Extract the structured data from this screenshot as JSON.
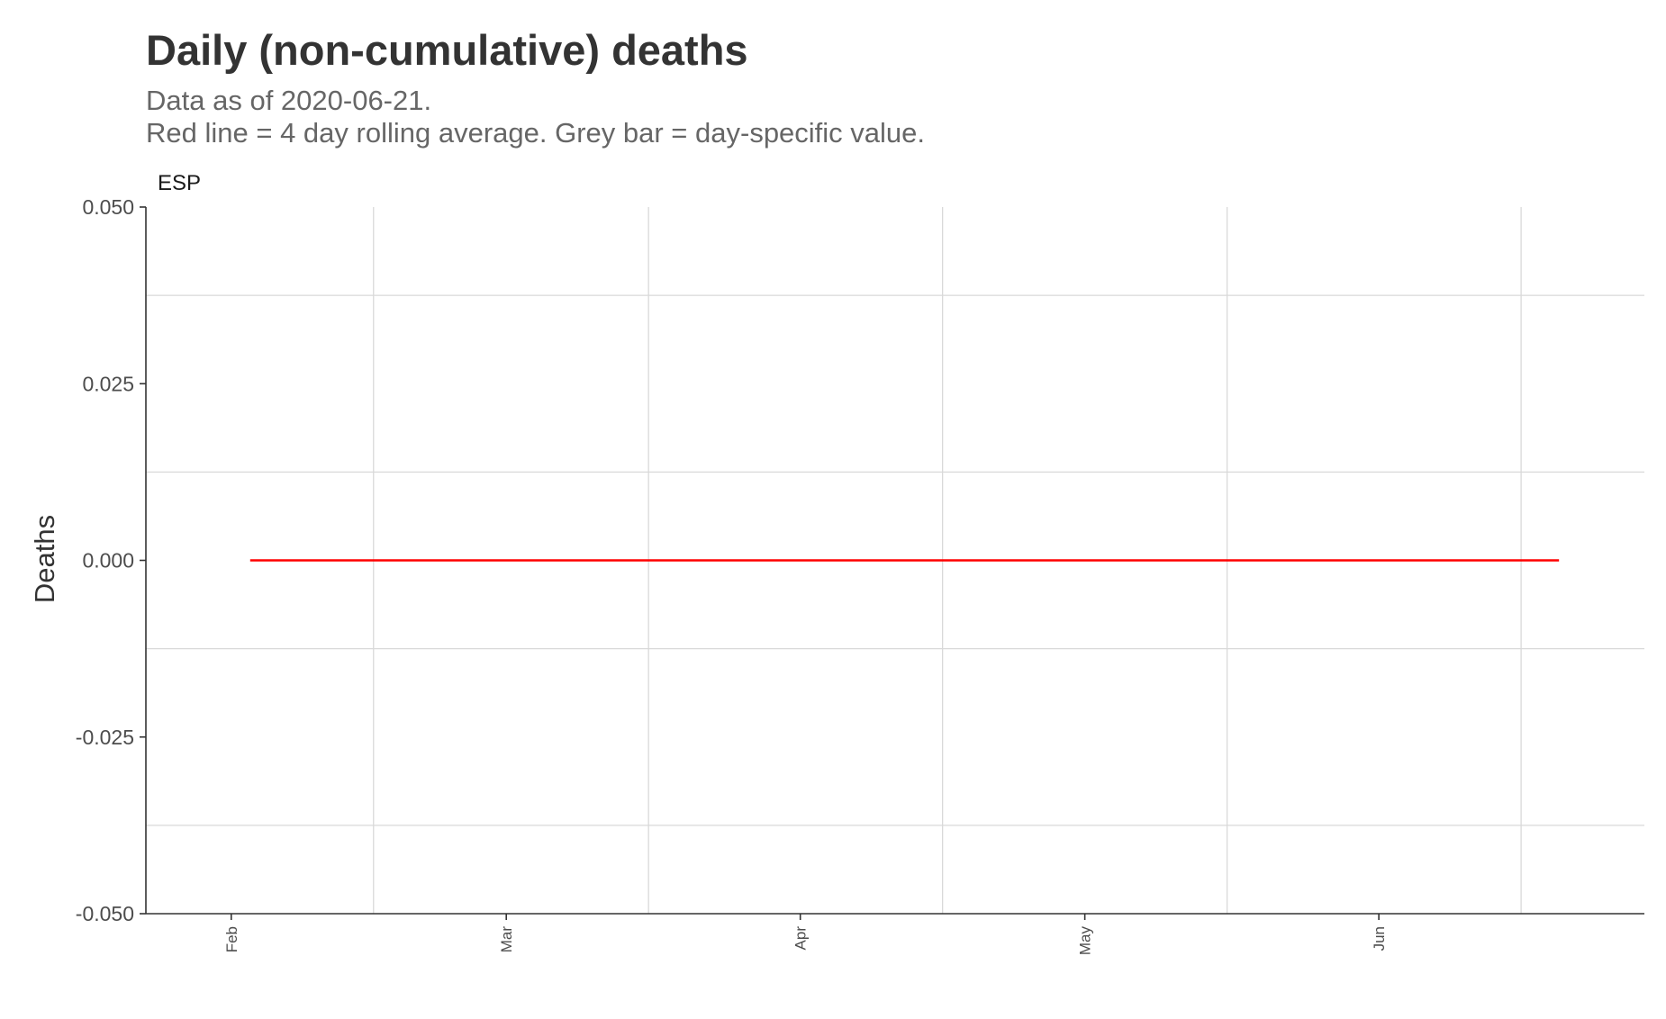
{
  "chart_data": {
    "type": "line",
    "title": "Daily (non-cumulative) deaths",
    "subtitle_lines": [
      "Data as of 2020-06-21.",
      "Red line = 4 day rolling average. Grey bar = day-specific value."
    ],
    "facet_label": "ESP",
    "ylabel": "Deaths",
    "xlabel": "",
    "ylim": [
      -0.05,
      0.05
    ],
    "yticks": [
      -0.05,
      -0.025,
      0,
      0.025,
      0.05
    ],
    "ytick_labels": [
      "-0.050",
      "-0.025",
      "0.000",
      "0.025",
      "0.050"
    ],
    "xlim": [
      "2020-01-23",
      "2020-06-29"
    ],
    "xticks": [
      "2020-02-01",
      "2020-03-01",
      "2020-04-01",
      "2020-05-01",
      "2020-06-01"
    ],
    "xtick_labels": [
      "Feb",
      "Mar",
      "Apr",
      "May",
      "Jun"
    ],
    "grid": true,
    "series": [
      {
        "name": "4 day rolling average",
        "color": "#ff0000",
        "x": [
          "2020-02-03",
          "2020-06-20"
        ],
        "y": [
          0,
          0
        ]
      }
    ],
    "bars": []
  }
}
